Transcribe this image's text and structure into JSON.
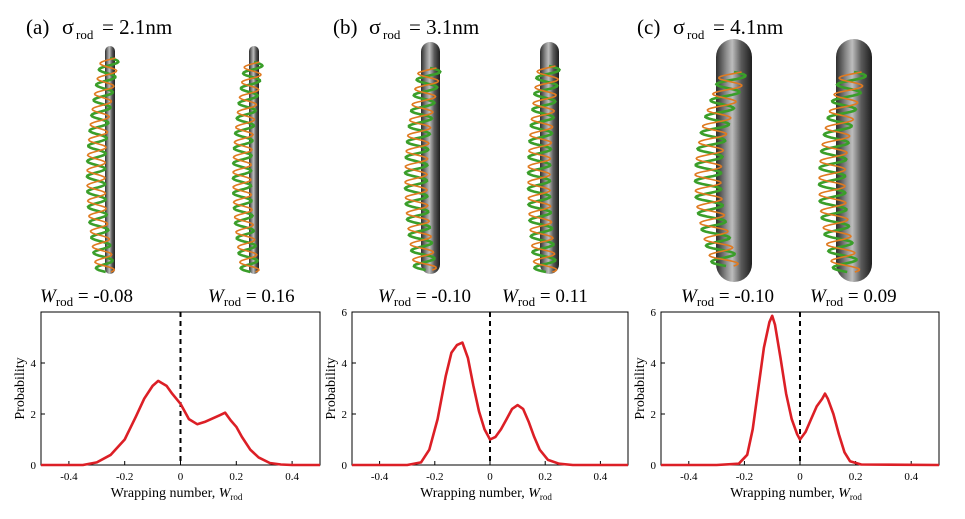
{
  "panels": [
    {
      "letter": "(a)",
      "sigma_symbol": "σ",
      "sigma_sub": "rod",
      "sigma_value": "= 2.1nm",
      "w_left": {
        "W": "W",
        "sub": "rod",
        "text": " = -0.08"
      },
      "w_right": {
        "W": "W",
        "sub": "rod",
        "text": " = 0.16"
      },
      "rod_radius_label": "thin"
    },
    {
      "letter": "(b)",
      "sigma_symbol": "σ",
      "sigma_sub": "rod",
      "sigma_value": "= 3.1nm",
      "w_left": {
        "W": "W",
        "sub": "rod",
        "text": " = -0.10"
      },
      "w_right": {
        "W": "W",
        "sub": "rod",
        "text": " = 0.11"
      },
      "rod_radius_label": "medium"
    },
    {
      "letter": "(c)",
      "sigma_symbol": "σ",
      "sigma_sub": "rod",
      "sigma_value": "= 4.1nm",
      "w_left": {
        "W": "W",
        "sub": "rod",
        "text": " = -0.10"
      },
      "w_right": {
        "W": "W",
        "sub": "rod",
        "text": " = 0.09"
      },
      "rod_radius_label": "thick"
    }
  ],
  "axis": {
    "ylabel": "Probability",
    "xlabel_prefix": "Wrapping number, ",
    "xlabel_W": "W",
    "xlabel_sub": "rod",
    "xticks": [
      "-0.4",
      "-0.2",
      "0",
      "0.2",
      "0.4"
    ],
    "yticks": [
      "0",
      "2",
      "4",
      "6"
    ]
  },
  "colors": {
    "curve": "#dc1f26",
    "rod": "#5d5d5d",
    "dna_green": "#3a9e2a",
    "dna_orange": "#e07a20",
    "zero_line": "#000000"
  },
  "chart_data": [
    {
      "type": "line",
      "title": "",
      "xlabel": "Wrapping number, Wrod",
      "ylabel": "Probability",
      "xlim": [
        -0.5,
        0.5
      ],
      "ylim": [
        0,
        6
      ],
      "yticks_shown": [
        "2",
        "4"
      ],
      "vertical_dashed_line_x": 0,
      "series": [
        {
          "x": [
            -0.5,
            -0.35,
            -0.3,
            -0.25,
            -0.2,
            -0.16,
            -0.13,
            -0.1,
            -0.08,
            -0.05,
            -0.03,
            0.0,
            0.03,
            0.06,
            0.09,
            0.12,
            0.14,
            0.16,
            0.18,
            0.2,
            0.22,
            0.25,
            0.28,
            0.32,
            0.36,
            0.4,
            0.5
          ],
          "y": [
            0.0,
            0.0,
            0.1,
            0.4,
            1.0,
            1.9,
            2.6,
            3.1,
            3.3,
            3.1,
            2.8,
            2.4,
            1.8,
            1.6,
            1.7,
            1.85,
            1.95,
            2.05,
            1.75,
            1.5,
            1.1,
            0.6,
            0.3,
            0.08,
            0.02,
            0.0,
            0.0
          ]
        }
      ]
    },
    {
      "type": "line",
      "title": "",
      "xlabel": "Wrapping number, Wrod",
      "ylabel": "Probability",
      "xlim": [
        -0.5,
        0.5
      ],
      "ylim": [
        0,
        6
      ],
      "yticks_shown": [
        "2",
        "4",
        "6"
      ],
      "vertical_dashed_line_x": 0,
      "series": [
        {
          "x": [
            -0.5,
            -0.3,
            -0.25,
            -0.22,
            -0.19,
            -0.16,
            -0.14,
            -0.12,
            -0.1,
            -0.08,
            -0.06,
            -0.04,
            -0.02,
            0.0,
            0.02,
            0.04,
            0.06,
            0.08,
            0.1,
            0.12,
            0.14,
            0.16,
            0.18,
            0.21,
            0.25,
            0.3,
            0.5
          ],
          "y": [
            0.0,
            0.0,
            0.1,
            0.6,
            1.8,
            3.5,
            4.4,
            4.7,
            4.8,
            4.2,
            3.1,
            2.1,
            1.4,
            1.0,
            1.1,
            1.4,
            1.8,
            2.2,
            2.35,
            2.2,
            1.7,
            1.1,
            0.6,
            0.2,
            0.05,
            0.0,
            0.0
          ]
        }
      ]
    },
    {
      "type": "line",
      "title": "",
      "xlabel": "Wrapping number, Wrod",
      "ylabel": "Probability",
      "xlim": [
        -0.5,
        0.5
      ],
      "ylim": [
        0,
        6
      ],
      "yticks_shown": [
        "2",
        "4",
        "6"
      ],
      "vertical_dashed_line_x": 0,
      "series": [
        {
          "x": [
            -0.5,
            -0.3,
            -0.22,
            -0.19,
            -0.17,
            -0.15,
            -0.13,
            -0.11,
            -0.1,
            -0.09,
            -0.07,
            -0.05,
            -0.03,
            -0.01,
            0.0,
            0.02,
            0.04,
            0.06,
            0.08,
            0.09,
            0.1,
            0.12,
            0.14,
            0.16,
            0.18,
            0.22,
            0.5
          ],
          "y": [
            0.0,
            0.0,
            0.05,
            0.4,
            1.4,
            3.0,
            4.6,
            5.6,
            5.85,
            5.5,
            4.2,
            2.8,
            1.8,
            1.2,
            1.0,
            1.3,
            1.8,
            2.3,
            2.6,
            2.8,
            2.6,
            2.0,
            1.2,
            0.5,
            0.15,
            0.02,
            0.0
          ]
        }
      ]
    }
  ]
}
